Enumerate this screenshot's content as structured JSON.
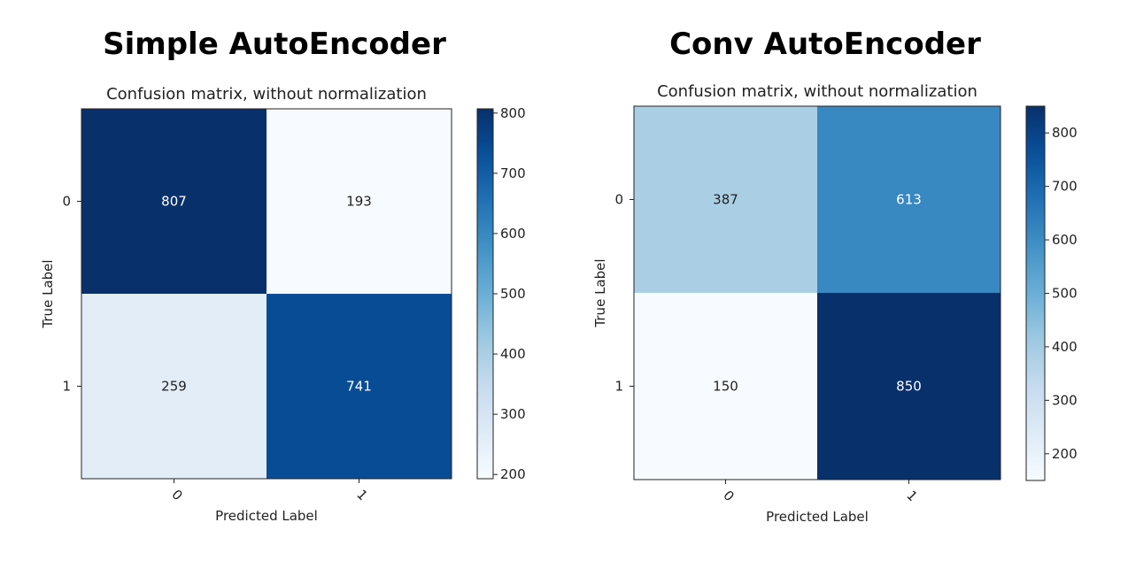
{
  "titles": {
    "left": "Simple AutoEncoder",
    "right": "Conv AutoEncoder"
  },
  "chart_data": [
    {
      "type": "heatmap",
      "title": "Confusion matrix, without normalization",
      "xlabel": "Predicted Label",
      "ylabel": "True Label",
      "x_ticks": [
        "0",
        "1"
      ],
      "y_ticks": [
        "0",
        "1"
      ],
      "values": [
        [
          807,
          193
        ],
        [
          259,
          741
        ]
      ],
      "colormap": "Blues",
      "colorbar": {
        "min": 193,
        "max": 807,
        "ticks": [
          200,
          300,
          400,
          500,
          600,
          700,
          800
        ]
      }
    },
    {
      "type": "heatmap",
      "title": "Confusion matrix, without normalization",
      "xlabel": "Predicted Label",
      "ylabel": "True Label",
      "x_ticks": [
        "0",
        "1"
      ],
      "y_ticks": [
        "0",
        "1"
      ],
      "values": [
        [
          387,
          613
        ],
        [
          150,
          850
        ]
      ],
      "colormap": "Blues",
      "colorbar": {
        "min": 150,
        "max": 850,
        "ticks": [
          200,
          300,
          400,
          500,
          600,
          700,
          800
        ]
      }
    }
  ]
}
